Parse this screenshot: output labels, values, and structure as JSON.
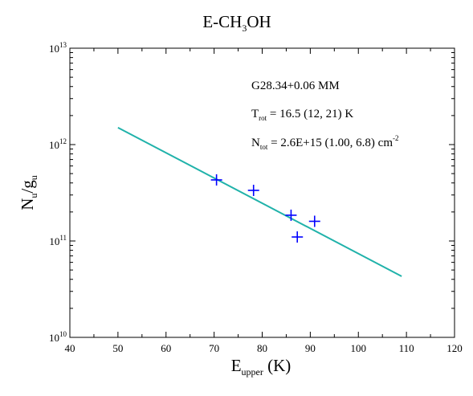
{
  "chart_data": {
    "type": "scatter",
    "title_parts": {
      "pre": "E-CH",
      "sub": "3",
      "post": "OH"
    },
    "xlabel_parts": {
      "pre": "E",
      "sub": "upper",
      "post": " (K)"
    },
    "ylabel_parts": {
      "pre": "N",
      "sub1": "u",
      "mid": "/g",
      "sub2": "u"
    },
    "xlim": [
      40,
      120
    ],
    "x_ticks": [
      "40",
      "50",
      "60",
      "70",
      "80",
      "90",
      "100",
      "110",
      "120"
    ],
    "y_scale": "log",
    "ylim": [
      10000000000.0,
      10000000000000.0
    ],
    "y_tick_base": "10",
    "y_tick_exponents": [
      "10",
      "11",
      "12",
      "13"
    ],
    "points": {
      "color": "#0000ff",
      "marker": "plus",
      "x": [
        70.5,
        78.2,
        86.0,
        87.3,
        90.9
      ],
      "y": [
        430000000000.0,
        335000000000.0,
        185000000000.0,
        110000000000.0,
        160000000000.0
      ]
    },
    "fit_line": {
      "color": "#20b2aa",
      "x": [
        50,
        109
      ],
      "y": [
        1500000000000.0,
        43000000000.0
      ]
    },
    "annotations": {
      "source": "G28.34+0.06 MM",
      "trot": {
        "pre": "T",
        "sub": "rot",
        "post": " = 16.5 (12, 21) K"
      },
      "ntot": {
        "pre": "N",
        "sub": "tot",
        "post": " = 2.6E+15  (1.00, 6.8) cm",
        "sup": "-2"
      }
    },
    "grid": false,
    "legend": "none"
  }
}
